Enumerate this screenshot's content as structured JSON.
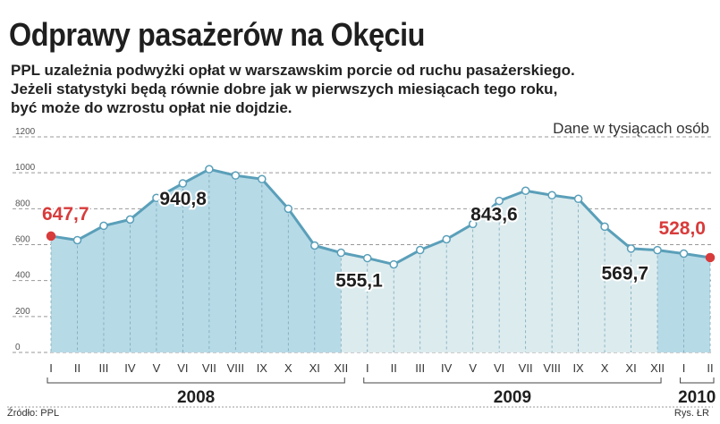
{
  "header": {
    "title": "Odprawy pasażerów na Okęciu",
    "subtitle_lines": [
      "PPL uzależnia podwyżki opłat w warszawskim porcie od ruchu pasażerskiego.",
      "Jeżeli statystyki będą równie dobre jak w pierwszych miesiącach tego roku,",
      "być może do wzrostu opłat nie dojdzie."
    ],
    "unit_note": "Dane w tysiącach osób"
  },
  "footer": {
    "source": "Źródło: PPL",
    "credit": "Rys. ŁR"
  },
  "colors": {
    "fill_2008": "#b7dae7",
    "fill_2009": "#dcebee",
    "fill_2010": "#b7dae7",
    "line": "#5a9fb9",
    "highlight": "#d83b3b",
    "text": "#1f1f1f",
    "grid": "#999999"
  },
  "chart_data": {
    "type": "area",
    "title": "",
    "xlabel": "",
    "ylabel": "",
    "ylim": [
      0,
      1200
    ],
    "yticks": [
      0,
      200,
      400,
      600,
      800,
      1000,
      1200
    ],
    "grid": true,
    "x": [
      "I",
      "II",
      "III",
      "IV",
      "V",
      "VI",
      "VII",
      "VIII",
      "IX",
      "X",
      "XI",
      "XII",
      "I",
      "II",
      "III",
      "IV",
      "V",
      "VI",
      "VII",
      "VIII",
      "IX",
      "X",
      "XI",
      "XII",
      "I",
      "II"
    ],
    "years": [
      {
        "label": "2008",
        "start_index": 0,
        "end_index": 11
      },
      {
        "label": "2009",
        "start_index": 12,
        "end_index": 23
      },
      {
        "label": "2010",
        "start_index": 24,
        "end_index": 25
      }
    ],
    "values": [
      647.7,
      625,
      705,
      740,
      860,
      940.8,
      1020,
      985,
      965,
      800,
      595,
      555.1,
      525,
      490,
      570,
      630,
      715,
      843.6,
      900,
      875,
      855,
      700,
      578,
      569.7,
      550,
      528.0
    ],
    "annotations": [
      {
        "index": 0,
        "text": "647,7",
        "highlight": true
      },
      {
        "index": 5,
        "text": "940,8",
        "highlight": false
      },
      {
        "index": 11,
        "text": "555,1",
        "highlight": false
      },
      {
        "index": 17,
        "text": "843,6",
        "highlight": false
      },
      {
        "index": 23,
        "text": "569,7",
        "highlight": false
      },
      {
        "index": 25,
        "text": "528,0",
        "highlight": true
      }
    ]
  }
}
